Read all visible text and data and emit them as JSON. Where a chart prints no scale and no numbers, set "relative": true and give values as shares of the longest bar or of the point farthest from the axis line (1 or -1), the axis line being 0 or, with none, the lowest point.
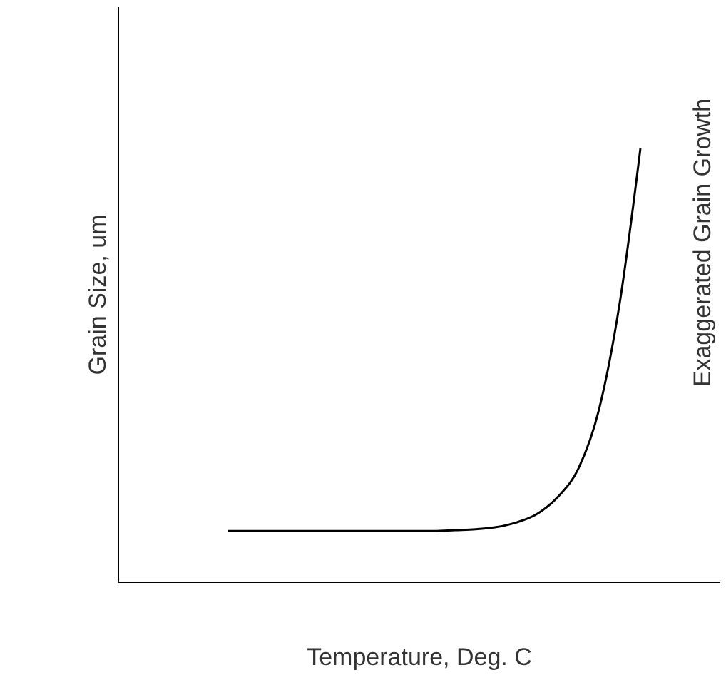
{
  "chart_data": {
    "type": "line",
    "relative": true,
    "xlabel": "Temperature, Deg. C",
    "ylabel": "Grain Size, um",
    "y2label": "Exaggerated Grain Growth",
    "categories": [
      null,
      null,
      null,
      null,
      null,
      null,
      null,
      null,
      null,
      null,
      null,
      null,
      null,
      null,
      null,
      null,
      null,
      null,
      null,
      null,
      null
    ],
    "series": [
      {
        "color": "#000000",
        "values": [
          0.118,
          0.118,
          0.118,
          0.118,
          0.118,
          0.118,
          0.118,
          0.118,
          0.118,
          0.118,
          0.118,
          0.12,
          0.122,
          0.127,
          0.138,
          0.158,
          0.197,
          0.263,
          0.4,
          0.645,
          1
        ]
      }
    ],
    "marker": "none",
    "line_style": "solid"
  }
}
